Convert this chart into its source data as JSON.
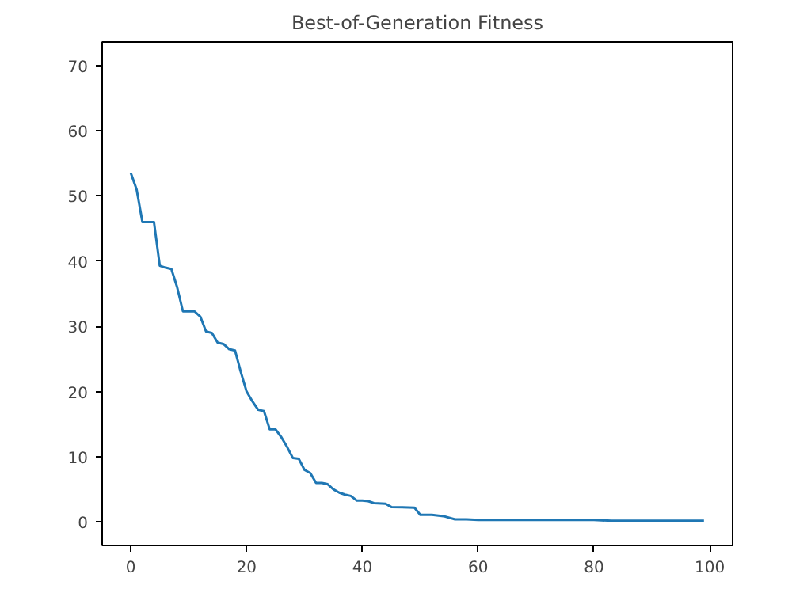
{
  "chart_data": {
    "type": "line",
    "title": "Best-of-Generation Fitness",
    "x": [
      0,
      1,
      2,
      4,
      5,
      6,
      7,
      8,
      9,
      11,
      12,
      13,
      14,
      15,
      16,
      17,
      18,
      19,
      20,
      21,
      22,
      23,
      24,
      25,
      26,
      27,
      28,
      29,
      30,
      31,
      32,
      33,
      34,
      35,
      36,
      37,
      38,
      39,
      40,
      41,
      42,
      44,
      45,
      49,
      50,
      52,
      54,
      56,
      58,
      60,
      80,
      83,
      99
    ],
    "series": [
      {
        "color": "#1f77b4",
        "values": [
          53.5,
          51,
          46,
          46,
          39.3,
          39,
          38.8,
          36,
          32.3,
          32.3,
          31.5,
          29.2,
          29,
          27.5,
          27.3,
          26.5,
          26.3,
          23,
          20,
          18.5,
          17.2,
          17,
          14.2,
          14.2,
          13,
          11.5,
          9.8,
          9.7,
          8,
          7.5,
          6,
          6,
          5.8,
          5,
          4.5,
          4.2,
          4,
          3.3,
          3.3,
          3.2,
          2.9,
          2.8,
          2.3,
          2.2,
          1.1,
          1.1,
          0.9,
          0.4,
          0.4,
          0.3,
          0.3,
          0.2,
          0.2
        ]
      }
    ],
    "xlim": [
      -4.95,
      103.95
    ],
    "ylim": [
      -3.6,
      73.6
    ],
    "xticks": [
      0,
      20,
      40,
      60,
      80,
      100
    ],
    "yticks": [
      0,
      10,
      20,
      30,
      40,
      50,
      60,
      70
    ],
    "grid": false,
    "marker": "none",
    "line_style": "solid"
  }
}
